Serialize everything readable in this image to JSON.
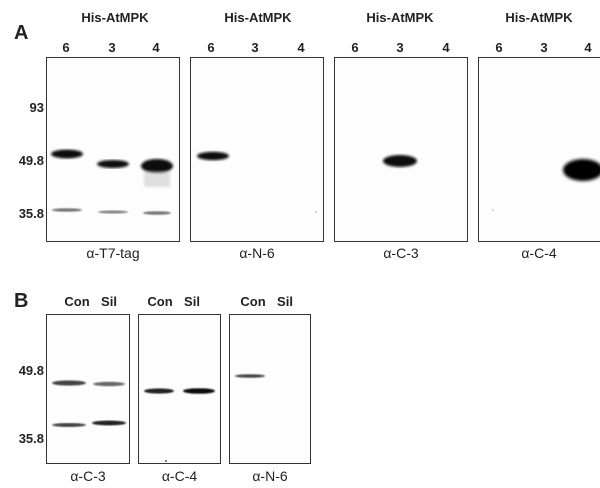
{
  "panel_a": {
    "letter": "A",
    "header": "His-AtMPK",
    "lanes": [
      "6",
      "3",
      "4"
    ],
    "markers": [
      "93",
      "49.8",
      "35.8"
    ],
    "antibodies": [
      "α-T7-tag",
      "α-N-6",
      "α-C-3",
      "α-C-4"
    ]
  },
  "panel_b": {
    "letter": "B",
    "lanes": [
      "Con",
      "Sil"
    ],
    "markers": [
      "49.8",
      "35.8"
    ],
    "antibodies": [
      "α-C-3",
      "α-C-4",
      "α-N-6"
    ]
  }
}
